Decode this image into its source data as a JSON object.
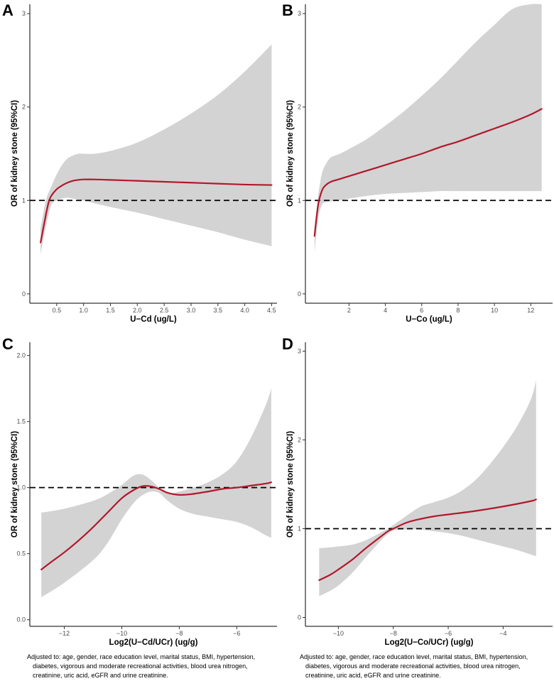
{
  "figure": {
    "colors": {
      "curve": "#b2182b",
      "band": "#d3d3d3",
      "axis": "#000000",
      "tick_text": "#4d4d4d"
    },
    "adjust_note": [
      "Adjusted to: age, gender, race  education level, marital status, BMI, hypertension,",
      "diabetes, vigorous and moderate recreational activities, blood urea nitrogen,",
      "creatinine, uric acid, eGFR and urine creatinine."
    ]
  },
  "chart_data": [
    {
      "panel": "A",
      "type": "line",
      "title": "",
      "xlabel": "U−Cd (ug/L)",
      "ylabel": "OR of kidney stone (95%CI)",
      "xlim": [
        0,
        4.6
      ],
      "ylim": [
        -0.1,
        3.1
      ],
      "xticks": [
        0.5,
        1.0,
        1.5,
        2.0,
        2.5,
        3.0,
        3.5,
        4.0,
        4.5
      ],
      "xtick_labels": [
        "0.5",
        "1.0",
        "1.5",
        "2.0",
        "2.5",
        "3.0",
        "3.5",
        "4.0",
        "4.5"
      ],
      "yticks": [
        0,
        1,
        2,
        3
      ],
      "ytick_labels": [
        "0",
        "1",
        "2",
        "3"
      ],
      "reference_line": 1,
      "series": [
        {
          "name": "OR",
          "x": [
            0.2,
            0.3,
            0.35,
            0.4,
            0.5,
            0.6,
            0.7,
            0.8,
            0.9,
            1.0,
            1.2,
            1.5,
            2.0,
            2.5,
            3.0,
            3.5,
            4.0,
            4.5
          ],
          "y": [
            0.55,
            0.85,
            0.98,
            1.05,
            1.12,
            1.16,
            1.19,
            1.21,
            1.22,
            1.225,
            1.225,
            1.22,
            1.21,
            1.2,
            1.19,
            1.18,
            1.17,
            1.165
          ]
        }
      ],
      "ci": {
        "x": [
          0.2,
          0.3,
          0.4,
          0.5,
          0.6,
          0.7,
          0.8,
          0.9,
          1.0,
          1.2,
          1.5,
          2.0,
          2.5,
          3.0,
          3.5,
          4.0,
          4.5
        ],
        "upper": [
          0.7,
          1.0,
          1.15,
          1.28,
          1.38,
          1.45,
          1.48,
          1.5,
          1.5,
          1.5,
          1.53,
          1.62,
          1.76,
          1.93,
          2.13,
          2.38,
          2.67
        ],
        "lower": [
          0.42,
          0.72,
          0.95,
          1.0,
          1.02,
          1.03,
          1.02,
          1.01,
          1.0,
          0.97,
          0.93,
          0.87,
          0.8,
          0.73,
          0.66,
          0.58,
          0.51
        ]
      }
    },
    {
      "panel": "B",
      "type": "line",
      "title": "",
      "xlabel": "U−Co (ug/L)",
      "ylabel": "OR of kidney stone (95%CI)",
      "xlim": [
        -0.4,
        13.2
      ],
      "ylim": [
        -0.1,
        3.1
      ],
      "xticks": [
        2,
        4,
        6,
        8,
        10,
        12
      ],
      "xtick_labels": [
        "2",
        "4",
        "6",
        "8",
        "10",
        "12"
      ],
      "yticks": [
        0,
        1,
        2,
        3
      ],
      "ytick_labels": [
        "0",
        "1",
        "2",
        "3"
      ],
      "reference_line": 1,
      "series": [
        {
          "name": "OR",
          "x": [
            0.1,
            0.3,
            0.5,
            0.7,
            1.0,
            1.5,
            2.0,
            3.0,
            4.0,
            5.0,
            6.0,
            7.0,
            8.0,
            9.0,
            10.0,
            11.0,
            12.0,
            12.6
          ],
          "y": [
            0.62,
            0.95,
            1.1,
            1.16,
            1.2,
            1.23,
            1.26,
            1.32,
            1.38,
            1.44,
            1.5,
            1.57,
            1.63,
            1.7,
            1.77,
            1.84,
            1.92,
            1.98
          ]
        }
      ],
      "ci": {
        "x": [
          0.1,
          0.3,
          0.5,
          0.7,
          1.0,
          1.5,
          2.0,
          3.0,
          4.0,
          5.0,
          6.0,
          7.0,
          8.0,
          9.0,
          10.0,
          11.0,
          12.0,
          12.6
        ],
        "upper": [
          0.7,
          1.05,
          1.28,
          1.38,
          1.46,
          1.5,
          1.55,
          1.66,
          1.8,
          1.95,
          2.12,
          2.3,
          2.5,
          2.7,
          2.88,
          3.05,
          3.1,
          3.1
        ],
        "lower": [
          0.45,
          0.8,
          0.95,
          0.98,
          0.99,
          1.0,
          1.02,
          1.05,
          1.07,
          1.08,
          1.09,
          1.1,
          1.1,
          1.1,
          1.1,
          1.1,
          1.1,
          1.1
        ]
      }
    },
    {
      "panel": "C",
      "type": "line",
      "title": "",
      "xlabel": "Log2(U−Cd/UCr) (ug/g)",
      "ylabel": "OR of kidney stone (95%CI)",
      "xlim": [
        -13.2,
        -4.6
      ],
      "ylim": [
        -0.05,
        2.1
      ],
      "xticks": [
        -12,
        -10,
        -8,
        -6
      ],
      "xtick_labels": [
        "−12",
        "−10",
        "−8",
        "−6"
      ],
      "yticks": [
        0.0,
        0.5,
        1.0,
        1.5,
        2.0
      ],
      "ytick_labels": [
        "0.0",
        "0.5",
        "1.0",
        "1.5",
        "2.0"
      ],
      "reference_line": 1,
      "series": [
        {
          "name": "OR",
          "x": [
            -12.8,
            -12.5,
            -12,
            -11.5,
            -11,
            -10.5,
            -10,
            -9.6,
            -9.3,
            -9.0,
            -8.7,
            -8.4,
            -8.0,
            -7.6,
            -7.0,
            -6.5,
            -6.0,
            -5.5,
            -5.0,
            -4.8
          ],
          "y": [
            0.38,
            0.43,
            0.51,
            0.6,
            0.7,
            0.81,
            0.92,
            0.98,
            1.01,
            1.01,
            0.99,
            0.96,
            0.945,
            0.95,
            0.97,
            0.99,
            1.0,
            1.015,
            1.03,
            1.04
          ]
        }
      ],
      "ci": {
        "x": [
          -12.8,
          -12,
          -11,
          -10.5,
          -10,
          -9.6,
          -9.3,
          -9.0,
          -8.7,
          -8.4,
          -8.0,
          -7.5,
          -7.0,
          -6.5,
          -6.0,
          -5.5,
          -5.0,
          -4.8
        ],
        "upper": [
          0.81,
          0.84,
          0.9,
          0.95,
          1.02,
          1.09,
          1.1,
          1.06,
          1.0,
          0.96,
          0.97,
          1.0,
          1.04,
          1.1,
          1.2,
          1.38,
          1.62,
          1.75
        ],
        "lower": [
          0.17,
          0.28,
          0.45,
          0.58,
          0.76,
          0.88,
          0.94,
          0.97,
          0.96,
          0.9,
          0.84,
          0.8,
          0.78,
          0.76,
          0.74,
          0.7,
          0.64,
          0.62
        ]
      }
    },
    {
      "panel": "D",
      "type": "line",
      "title": "",
      "xlabel": "Log2(U−Co/UCr) (ug/g)",
      "ylabel": "OR of kidney stone (95%CI)",
      "xlim": [
        -11.2,
        -2.2
      ],
      "ylim": [
        -0.1,
        3.1
      ],
      "xticks": [
        -10,
        -8,
        -6,
        -4
      ],
      "xtick_labels": [
        "−10",
        "−8",
        "−6",
        "−4"
      ],
      "yticks": [
        0,
        1,
        2,
        3
      ],
      "ytick_labels": [
        "0",
        "1",
        "2",
        "3"
      ],
      "reference_line": 1,
      "series": [
        {
          "name": "OR",
          "x": [
            -10.7,
            -10.3,
            -10,
            -9.5,
            -9,
            -8.5,
            -8.2,
            -8,
            -7.5,
            -7,
            -6.5,
            -6,
            -5,
            -4,
            -3,
            -2.8
          ],
          "y": [
            0.42,
            0.48,
            0.54,
            0.65,
            0.78,
            0.9,
            0.97,
            1.0,
            1.07,
            1.11,
            1.14,
            1.16,
            1.2,
            1.25,
            1.31,
            1.33
          ]
        }
      ],
      "ci": {
        "x": [
          -10.7,
          -10.3,
          -10,
          -9.5,
          -9,
          -8.5,
          -8.2,
          -8,
          -7.5,
          -7,
          -6.5,
          -6,
          -5.5,
          -5,
          -4.5,
          -4,
          -3.5,
          -3,
          -2.8
        ],
        "upper": [
          0.78,
          0.79,
          0.8,
          0.82,
          0.87,
          0.95,
          1.0,
          1.04,
          1.15,
          1.25,
          1.3,
          1.35,
          1.43,
          1.55,
          1.72,
          1.92,
          2.15,
          2.45,
          2.67
        ],
        "lower": [
          0.24,
          0.3,
          0.36,
          0.5,
          0.68,
          0.85,
          0.94,
          0.98,
          0.99,
          0.99,
          0.97,
          0.95,
          0.92,
          0.88,
          0.84,
          0.8,
          0.76,
          0.71,
          0.69
        ]
      }
    }
  ]
}
